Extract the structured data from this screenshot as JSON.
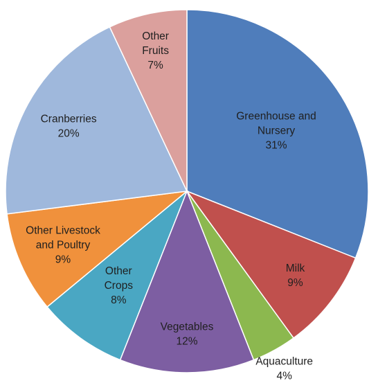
{
  "chart_data": {
    "type": "pie",
    "title": "",
    "start": "12 o'clock, clockwise",
    "legend": "none (labels on slices)",
    "slices": [
      {
        "name": "Greenhouse and Nursery",
        "label_lines": [
          "Greenhouse and",
          "Nursery"
        ],
        "value": 31,
        "value_label": "31%",
        "color": "#4f7dbb"
      },
      {
        "name": "Milk",
        "label_lines": [
          "Milk"
        ],
        "value": 9,
        "value_label": "9%",
        "color": "#c0504d"
      },
      {
        "name": "Aquaculture",
        "label_lines": [
          "Aquaculture"
        ],
        "value": 4,
        "value_label": "4%",
        "color": "#8cb84f"
      },
      {
        "name": "Vegetables",
        "label_lines": [
          "Vegetables"
        ],
        "value": 12,
        "value_label": "12%",
        "color": "#7d5ea2"
      },
      {
        "name": "Other Crops",
        "label_lines": [
          "Other",
          "Crops"
        ],
        "value": 8,
        "value_label": "8%",
        "color": "#4aa7c3"
      },
      {
        "name": "Other Livestock and Poultry",
        "label_lines": [
          "Other Livestock",
          "and Poultry"
        ],
        "value": 9,
        "value_label": "9%",
        "color": "#f0913c"
      },
      {
        "name": "Cranberries",
        "label_lines": [
          "Cranberries"
        ],
        "value": 20,
        "value_label": "20%",
        "color": "#9fb8dc"
      },
      {
        "name": "Other Fruits",
        "label_lines": [
          "Other",
          "Fruits"
        ],
        "value": 7,
        "value_label": "7%",
        "color": "#dba09d"
      }
    ]
  }
}
